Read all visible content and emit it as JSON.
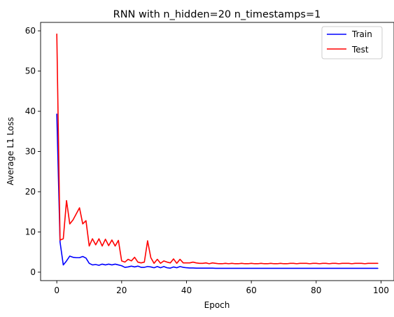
{
  "chart_data": {
    "type": "line",
    "title": "RNN with n_hidden=20 n_timestamps=1",
    "xlabel": "Epoch",
    "ylabel": "Average L1 Loss",
    "xlim": [
      -5,
      104
    ],
    "ylim": [
      -2.1,
      62.1
    ],
    "xticks": [
      0,
      20,
      40,
      60,
      80,
      100
    ],
    "yticks": [
      0,
      10,
      20,
      30,
      40,
      50,
      60
    ],
    "grid": false,
    "legend_position": "top-right",
    "x": [
      0,
      1,
      2,
      3,
      4,
      5,
      6,
      7,
      8,
      9,
      10,
      11,
      12,
      13,
      14,
      15,
      16,
      17,
      18,
      19,
      20,
      21,
      22,
      23,
      24,
      25,
      26,
      27,
      28,
      29,
      30,
      31,
      32,
      33,
      34,
      35,
      36,
      37,
      38,
      39,
      40,
      41,
      42,
      43,
      44,
      45,
      46,
      47,
      48,
      49,
      50,
      51,
      52,
      53,
      54,
      55,
      56,
      57,
      58,
      59,
      60,
      61,
      62,
      63,
      64,
      65,
      66,
      67,
      68,
      69,
      70,
      71,
      72,
      73,
      74,
      75,
      76,
      77,
      78,
      79,
      80,
      81,
      82,
      83,
      84,
      85,
      86,
      87,
      88,
      89,
      90,
      91,
      92,
      93,
      94,
      95,
      96,
      97,
      98,
      99
    ],
    "series": [
      {
        "name": "Train",
        "color": "#0000ff",
        "values": [
          39.3,
          7.5,
          1.8,
          2.8,
          4.0,
          3.7,
          3.6,
          3.6,
          3.9,
          3.5,
          2.2,
          1.8,
          1.9,
          1.7,
          2.0,
          1.8,
          2.0,
          1.8,
          2.0,
          1.8,
          1.6,
          1.2,
          1.3,
          1.5,
          1.3,
          1.5,
          1.2,
          1.2,
          1.4,
          1.3,
          1.1,
          1.4,
          1.1,
          1.4,
          1.1,
          1.0,
          1.3,
          1.1,
          1.4,
          1.2,
          1.1,
          1.05,
          1.05,
          1.0,
          1.0,
          1.0,
          1.0,
          1.0,
          1.0,
          0.95,
          0.95,
          0.95,
          0.95,
          0.95,
          0.95,
          0.95,
          0.95,
          0.95,
          0.95,
          0.95,
          0.95,
          0.95,
          0.95,
          0.95,
          0.95,
          0.95,
          0.95,
          0.95,
          0.95,
          0.95,
          0.95,
          0.95,
          0.95,
          0.95,
          0.95,
          0.95,
          0.95,
          0.95,
          0.95,
          0.95,
          0.95,
          0.95,
          0.95,
          0.95,
          0.95,
          0.95,
          0.95,
          0.95,
          0.95,
          0.95,
          0.95,
          0.95,
          0.95,
          0.95,
          0.95,
          0.95,
          0.95,
          0.95,
          0.95,
          0.95
        ]
      },
      {
        "name": "Test",
        "color": "#ff0000",
        "values": [
          59.2,
          8.0,
          8.3,
          17.8,
          12.0,
          13.0,
          14.5,
          16.0,
          12.0,
          12.8,
          6.5,
          8.3,
          6.8,
          8.3,
          6.5,
          8.2,
          6.6,
          8.0,
          6.5,
          7.9,
          2.8,
          2.5,
          3.2,
          2.8,
          3.7,
          2.5,
          2.3,
          2.5,
          7.8,
          3.6,
          2.2,
          3.2,
          2.2,
          2.8,
          2.5,
          2.3,
          3.3,
          2.2,
          3.2,
          2.3,
          2.3,
          2.3,
          2.5,
          2.3,
          2.2,
          2.2,
          2.3,
          2.1,
          2.3,
          2.2,
          2.1,
          2.1,
          2.2,
          2.1,
          2.2,
          2.1,
          2.1,
          2.2,
          2.1,
          2.1,
          2.2,
          2.1,
          2.1,
          2.2,
          2.1,
          2.1,
          2.2,
          2.1,
          2.1,
          2.2,
          2.1,
          2.1,
          2.2,
          2.2,
          2.1,
          2.2,
          2.2,
          2.2,
          2.1,
          2.2,
          2.2,
          2.1,
          2.2,
          2.2,
          2.1,
          2.2,
          2.2,
          2.1,
          2.2,
          2.2,
          2.2,
          2.1,
          2.2,
          2.2,
          2.2,
          2.1,
          2.2,
          2.2,
          2.2,
          2.2
        ]
      }
    ]
  }
}
